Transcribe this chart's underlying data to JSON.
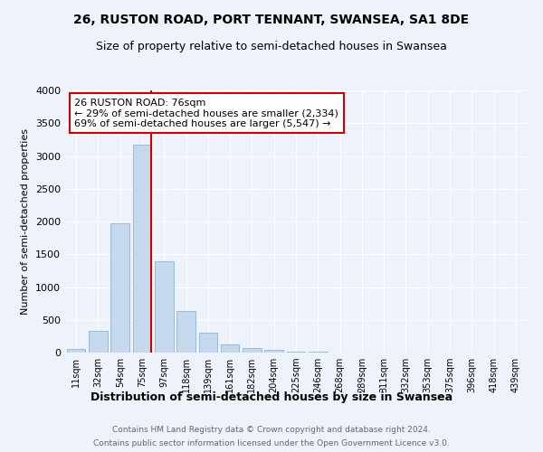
{
  "title": "26, RUSTON ROAD, PORT TENNANT, SWANSEA, SA1 8DE",
  "subtitle": "Size of property relative to semi-detached houses in Swansea",
  "xlabel": "Distribution of semi-detached houses by size in Swansea",
  "ylabel": "Number of semi-detached properties",
  "bar_color": "#c5d8ee",
  "bar_edge_color": "#8fb4d8",
  "categories": [
    "11sqm",
    "32sqm",
    "54sqm",
    "75sqm",
    "97sqm",
    "118sqm",
    "139sqm",
    "161sqm",
    "182sqm",
    "204sqm",
    "225sqm",
    "246sqm",
    "268sqm",
    "289sqm",
    "311sqm",
    "332sqm",
    "353sqm",
    "375sqm",
    "396sqm",
    "418sqm",
    "439sqm"
  ],
  "values": [
    50,
    330,
    1970,
    3170,
    1390,
    640,
    300,
    120,
    70,
    35,
    20,
    10,
    5,
    3,
    0,
    0,
    0,
    0,
    0,
    0,
    0
  ],
  "property_bin_index": 3,
  "annotation_line1": "26 RUSTON ROAD: 76sqm",
  "annotation_line2": "← 29% of semi-detached houses are smaller (2,334)",
  "annotation_line3": "69% of semi-detached houses are larger (5,547) →",
  "annotation_box_color": "#cc0000",
  "annotation_fill": "white",
  "ylim": [
    0,
    4000
  ],
  "yticks": [
    0,
    500,
    1000,
    1500,
    2000,
    2500,
    3000,
    3500,
    4000
  ],
  "footer_line1": "Contains HM Land Registry data © Crown copyright and database right 2024.",
  "footer_line2": "Contains public sector information licensed under the Open Government Licence v3.0.",
  "background_color": "#eef2fa",
  "grid_color": "white",
  "title_fontsize": 10,
  "subtitle_fontsize": 9
}
